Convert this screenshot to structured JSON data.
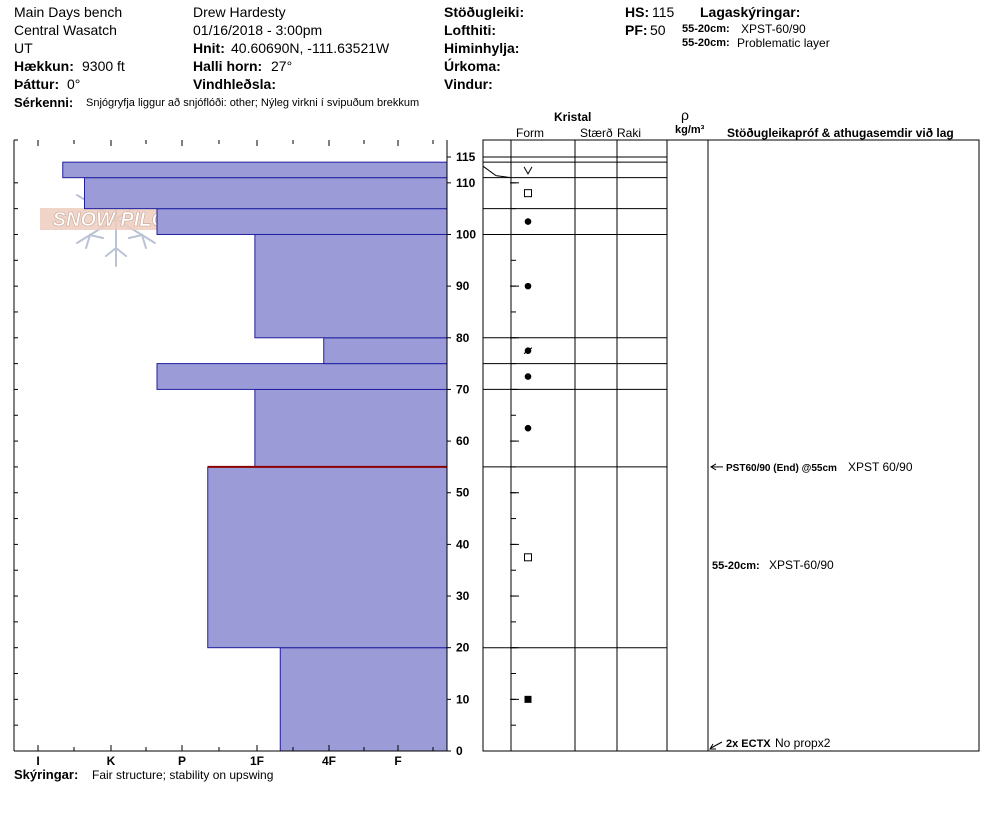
{
  "header": {
    "location": "Main Days bench",
    "range": "Central Wasatch",
    "state": "UT",
    "elevation_label": "Hækkun:",
    "elevation_value": "9300 ft",
    "aspect_label": "Þáttur:",
    "aspect_value": "0°",
    "features_label": "Sérkenni:",
    "features_value": "Snjógryfja liggur að snjóflóði: other; Nýleg virkni í svipuðum brekkum",
    "observer": "Drew Hardesty",
    "datetime": "01/16/2018 - 3:00pm",
    "coords_label": "Hnit:",
    "coords_value": "40.60690N, -111.63521W",
    "slope_label": "Halli horn:",
    "slope_value": "27°",
    "wind_loading_label": "Vindhleðsla:",
    "stability_label": "Stöðugleiki:",
    "air_temp_label": "Lofthiti:",
    "sky_label": "Himinhylja:",
    "precip_label": "Úrkoma:",
    "wind_label": "Vindur:",
    "hs_label": "HS:",
    "hs_value": "115",
    "pf_label": "PF:",
    "pf_value": "50",
    "layer_notes_title": "Lagaskýringar:",
    "layer_notes": [
      {
        "depth": "55-20cm:",
        "text": "XPST-60/90"
      },
      {
        "depth": "55-20cm:",
        "text": "Problematic layer"
      }
    ]
  },
  "columns": {
    "crystal": "Kristal",
    "form": "Form",
    "size": "Stærð",
    "moisture": "Raki",
    "rho": "ρ",
    "density_unit": "kg/m³",
    "tests": "Stöðugleikapróf & athugasemdir við lag"
  },
  "footer": {
    "notes_label": "Skýringar:",
    "notes_value": "Fair structure; stability on upswing"
  },
  "logo_text": "SNOW PILOT",
  "colors": {
    "hardness_fill": "#9b9bd7",
    "hardness_stroke": "#1f1fa0",
    "problem_layer": "#8b0000"
  },
  "chart_data": {
    "type": "bar",
    "ylim": [
      0,
      115
    ],
    "hardness_scale": [
      "I",
      "K",
      "P",
      "1F",
      "4F",
      "F"
    ],
    "depth_ticks": [
      0,
      10,
      20,
      30,
      40,
      50,
      60,
      70,
      80,
      90,
      100,
      110,
      115
    ],
    "layers": [
      {
        "bottom": 0,
        "top": 20,
        "hardness": 2.3,
        "form": "filled-square"
      },
      {
        "bottom": 20,
        "top": 55,
        "hardness": 3.3,
        "form": "open-square"
      },
      {
        "bottom": 55,
        "top": 70,
        "hardness": 2.65,
        "form": "dot"
      },
      {
        "bottom": 70,
        "top": 75,
        "hardness": 4.0,
        "form": "dot"
      },
      {
        "bottom": 75,
        "top": 80,
        "hardness": 1.7,
        "form": "dot-slash"
      },
      {
        "bottom": 80,
        "top": 100,
        "hardness": 2.65,
        "form": "dot"
      },
      {
        "bottom": 100,
        "top": 105,
        "hardness": 4.0,
        "form": "dot"
      },
      {
        "bottom": 105,
        "top": 111,
        "hardness": 5.0,
        "form": "open-square"
      },
      {
        "bottom": 111,
        "top": 114,
        "hardness": 5.3,
        "form": "vee"
      }
    ],
    "problem_layer_depth": 55,
    "tests": [
      {
        "depth": 55,
        "label": "PST60/90 (End) @55cm",
        "result": "XPST 60/90"
      },
      {
        "depth": 36,
        "label": "55-20cm:",
        "result": "XPST-60/90"
      },
      {
        "depth": 0,
        "label": "2x ECTX",
        "result": "No propx2"
      }
    ]
  }
}
